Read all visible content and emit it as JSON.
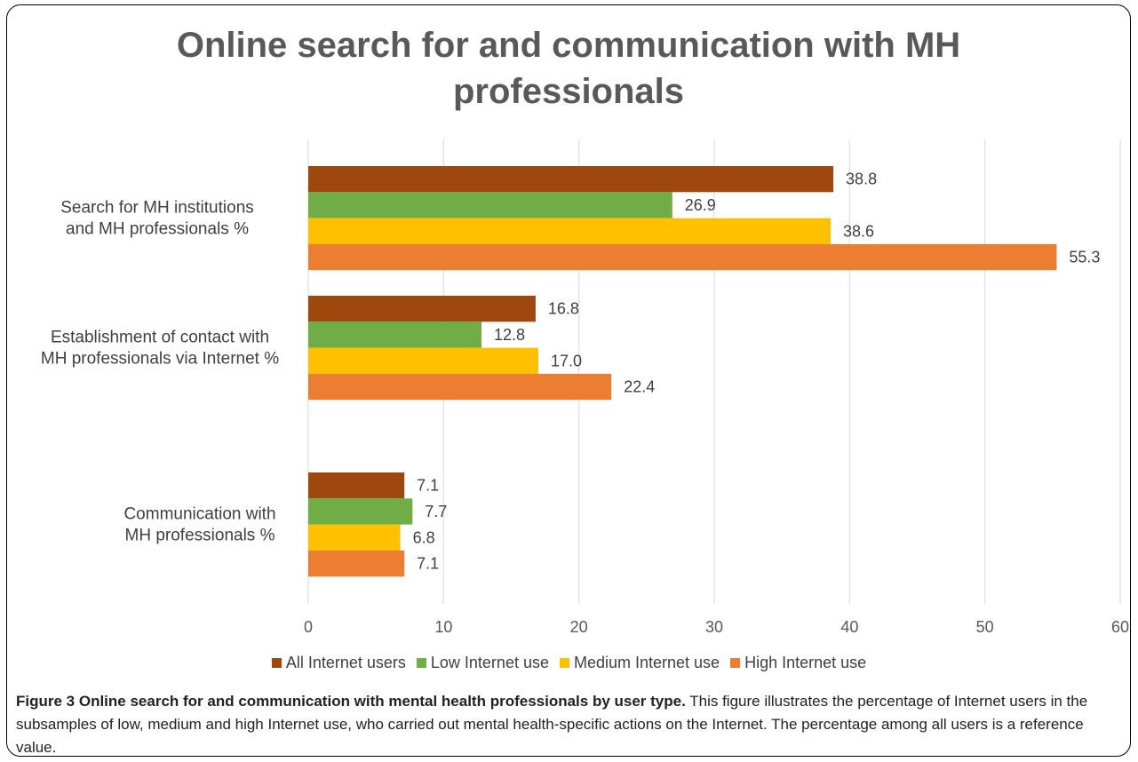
{
  "chart_data": {
    "type": "bar",
    "orientation": "horizontal",
    "title_lines": [
      "Online search for and communication with MH",
      "professionals"
    ],
    "category_lines": [
      [
        "Search for MH institutions",
        "and MH professionals %"
      ],
      [
        "Establishment of contact with",
        "MH professionals via Internet %"
      ],
      [
        "Communication with",
        "MH professionals %"
      ]
    ],
    "series": [
      {
        "name": "All Internet users",
        "color": "#9E480E",
        "values": [
          38.8,
          16.8,
          7.1
        ]
      },
      {
        "name": "Low Internet use",
        "color": "#70AD47",
        "values": [
          26.9,
          12.8,
          7.7
        ]
      },
      {
        "name": "Medium Internet use",
        "color": "#FFC000",
        "values": [
          38.6,
          17.0,
          6.8
        ]
      },
      {
        "name": "High Internet use",
        "color": "#ED7D31",
        "values": [
          55.3,
          22.4,
          7.1
        ]
      }
    ],
    "xticks": [
      "0",
      "10",
      "20",
      "30",
      "40",
      "50",
      "60"
    ],
    "xlim": [
      0,
      60
    ],
    "grid": "vertical",
    "legend_position": "bottom"
  },
  "caption": {
    "heading": "Figure 3 Online search for and communication with mental health professionals by user type.",
    "body": " This figure illustrates the percentage of Internet users in the subsamples of low, medium and high Internet use, who carried out mental health-specific actions on the Internet. The percentage among all users is a reference value."
  }
}
